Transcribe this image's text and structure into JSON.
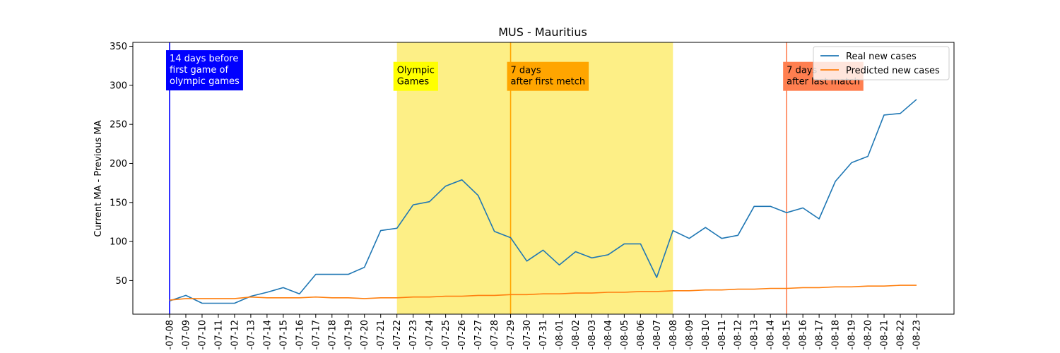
{
  "chart_data": {
    "type": "line",
    "title": "MUS - Mauritius",
    "xlabel": "",
    "ylabel": "Current MA - Previous MA",
    "ylim": [
      7,
      355
    ],
    "yticks": [
      50,
      100,
      150,
      200,
      250,
      300,
      350
    ],
    "x": [
      "2021-07-08",
      "2021-07-09",
      "2021-07-10",
      "2021-07-11",
      "2021-07-12",
      "2021-07-13",
      "2021-07-14",
      "2021-07-15",
      "2021-07-16",
      "2021-07-17",
      "2021-07-18",
      "2021-07-19",
      "2021-07-20",
      "2021-07-21",
      "2021-07-22",
      "2021-07-23",
      "2021-07-24",
      "2021-07-25",
      "2021-07-26",
      "2021-07-27",
      "2021-07-28",
      "2021-07-29",
      "2021-07-30",
      "2021-07-31",
      "2021-08-01",
      "2021-08-02",
      "2021-08-03",
      "2021-08-04",
      "2021-08-05",
      "2021-08-06",
      "2021-08-07",
      "2021-08-08",
      "2021-08-09",
      "2021-08-10",
      "2021-08-11",
      "2021-08-12",
      "2021-08-13",
      "2021-08-14",
      "2021-08-15",
      "2021-08-16",
      "2021-08-17",
      "2021-08-18",
      "2021-08-19",
      "2021-08-20",
      "2021-08-21",
      "2021-08-22",
      "2021-08-23"
    ],
    "x_tick_labels": [
      "-07-08",
      "-07-09",
      "-07-10",
      "-07-11",
      "-07-12",
      "-07-13",
      "-07-14",
      "-07-15",
      "-07-16",
      "-07-17",
      "-07-18",
      "-07-19",
      "-07-20",
      "-07-21",
      "-07-22",
      "-07-23",
      "-07-24",
      "-07-25",
      "-07-26",
      "-07-27",
      "-07-28",
      "-07-29",
      "-07-30",
      "-07-31",
      "-08-01",
      "-08-02",
      "-08-03",
      "-08-04",
      "-08-05",
      "-08-06",
      "-08-07",
      "-08-08",
      "-08-09",
      "-08-10",
      "-08-11",
      "-08-12",
      "-08-13",
      "-08-14",
      "-08-15",
      "-08-16",
      "-08-17",
      "-08-18",
      "-08-19",
      "-08-20",
      "-08-21",
      "-08-22",
      "-08-23"
    ],
    "series": [
      {
        "name": "Real new cases",
        "color": "#1f77b4",
        "values": [
          24,
          31,
          21,
          21,
          21,
          30,
          35,
          41,
          33,
          58,
          58,
          58,
          67,
          114,
          117,
          147,
          151,
          171,
          179,
          159,
          113,
          105,
          75,
          89,
          70,
          87,
          79,
          83,
          97,
          97,
          54,
          114,
          104,
          118,
          104,
          108,
          145,
          145,
          137,
          143,
          129,
          177,
          201,
          209,
          262,
          264,
          282
        ]
      },
      {
        "name": "Predicted new cases",
        "color": "#ff7f0e",
        "values": [
          25,
          27,
          27,
          27,
          27,
          29,
          28,
          28,
          28,
          29,
          28,
          28,
          27,
          28,
          28,
          29,
          29,
          30,
          30,
          31,
          31,
          32,
          32,
          33,
          33,
          34,
          34,
          35,
          35,
          36,
          36,
          37,
          37,
          38,
          38,
          39,
          39,
          40,
          40,
          41,
          41,
          42,
          42,
          43,
          43,
          44,
          44
        ]
      }
    ],
    "shaded_span": {
      "from": "2021-07-22",
      "to": "2021-08-08",
      "color": "#fdef86"
    },
    "vlines": [
      {
        "x": "2021-07-08",
        "color": "#0000ff",
        "label": "14 days before\nfirst game of\nolympic games",
        "box_color": "#0000ff",
        "text_color": "#ffffff",
        "label_y": 345
      },
      {
        "x": "2021-07-22",
        "color": "none",
        "label": "Olympic\nGames",
        "box_color": "#ffff00",
        "text_color": "#000000",
        "label_y": 330
      },
      {
        "x": "2021-07-29",
        "color": "#ffa500",
        "label": "7 days\nafter first metch",
        "box_color": "#ffa500",
        "text_color": "#000000",
        "label_y": 330
      },
      {
        "x": "2021-08-15",
        "color": "#ff7f50",
        "label": "7 days\nafter last match",
        "box_color": "#ff7f50",
        "text_color": "#000000",
        "label_y": 330
      }
    ],
    "legend": {
      "position": "top-right",
      "entries": [
        "Real new cases",
        "Predicted new cases"
      ]
    },
    "grid": false
  }
}
